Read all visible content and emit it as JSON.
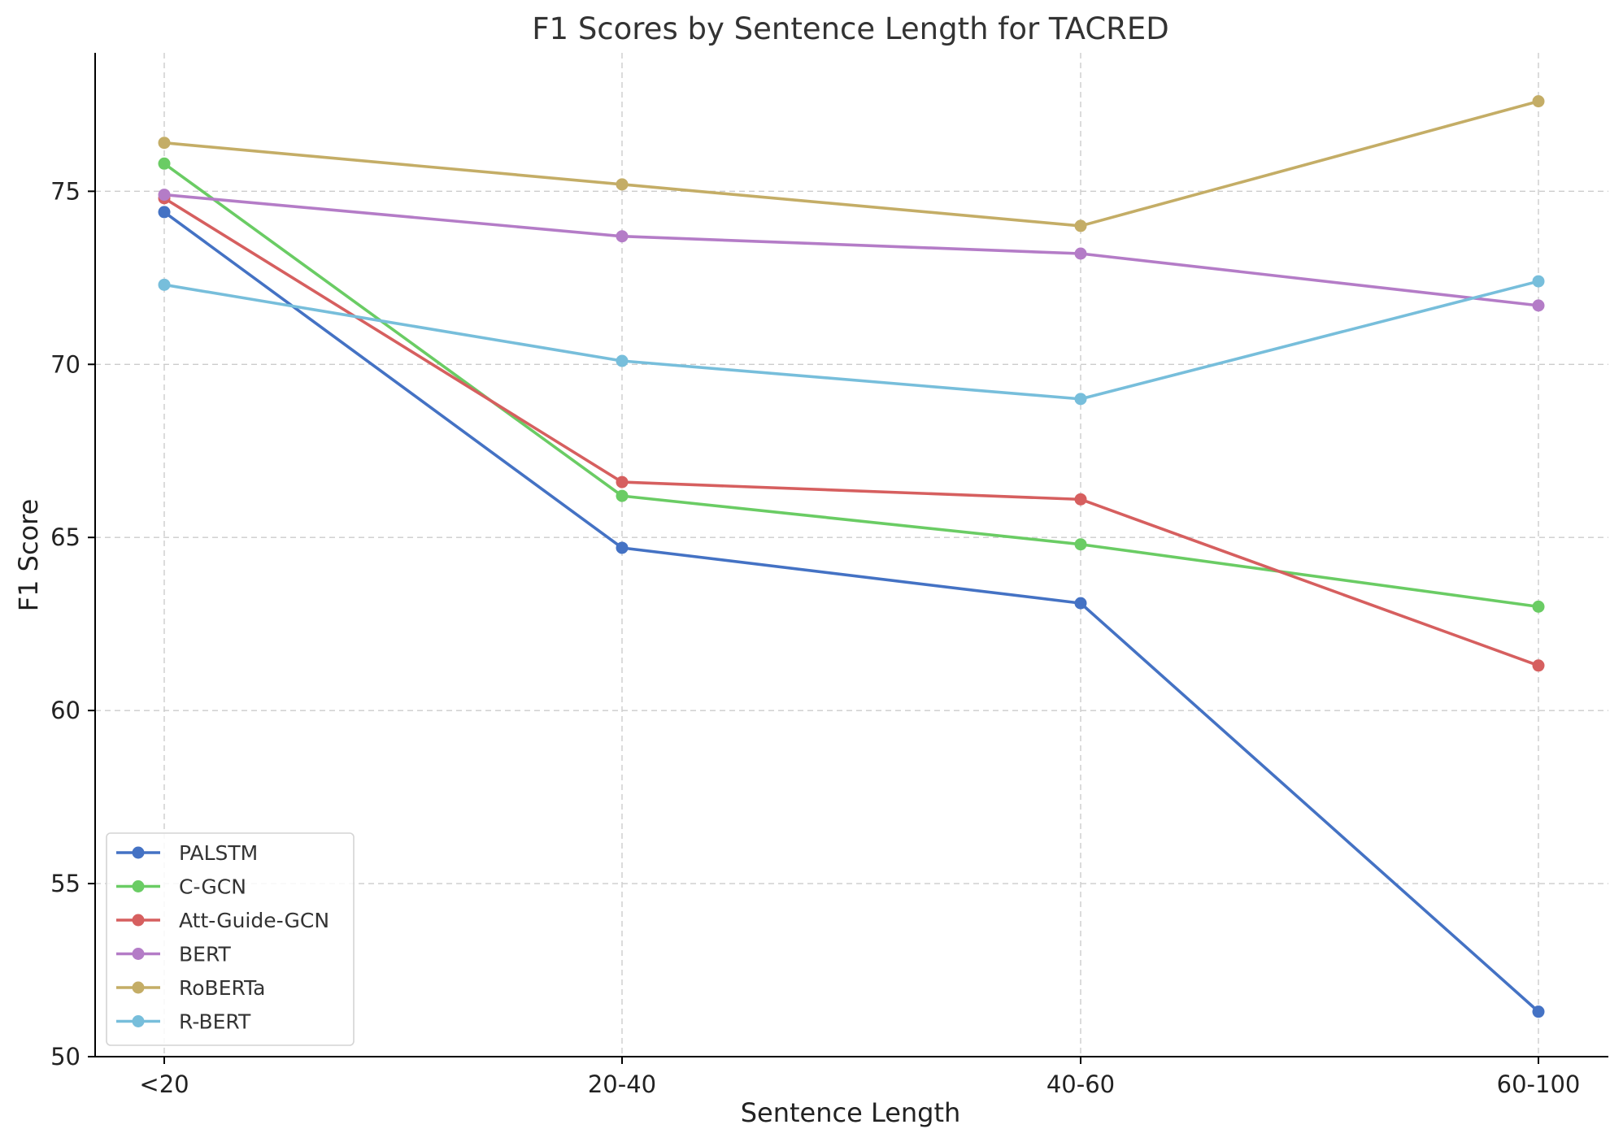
{
  "chart_data": {
    "type": "line",
    "title": "F1 Scores by Sentence Length for TACRED",
    "xlabel": "Sentence Length",
    "ylabel": "F1 Score",
    "categories": [
      "<20",
      "20-40",
      "40-60",
      "60-100"
    ],
    "ylim": [
      50,
      79
    ],
    "yticks": [
      50,
      55,
      60,
      65,
      70,
      75
    ],
    "grid": true,
    "legend_position": "lower-left",
    "series": [
      {
        "name": "PALSTM",
        "color": "#4472c4",
        "values": [
          74.4,
          64.7,
          63.1,
          51.3
        ]
      },
      {
        "name": "C-GCN",
        "color": "#6acc64",
        "values": [
          75.8,
          66.2,
          64.8,
          63.0
        ]
      },
      {
        "name": "Att-Guide-GCN",
        "color": "#d65f5f",
        "values": [
          74.8,
          66.6,
          66.1,
          61.3
        ]
      },
      {
        "name": "BERT",
        "color": "#b47cc7",
        "values": [
          74.9,
          73.7,
          73.2,
          71.7
        ]
      },
      {
        "name": "RoBERTa",
        "color": "#c4ad66",
        "values": [
          76.4,
          75.2,
          74.0,
          77.6
        ]
      },
      {
        "name": "R-BERT",
        "color": "#77bedb",
        "values": [
          72.3,
          70.1,
          69.0,
          72.4
        ]
      }
    ]
  }
}
